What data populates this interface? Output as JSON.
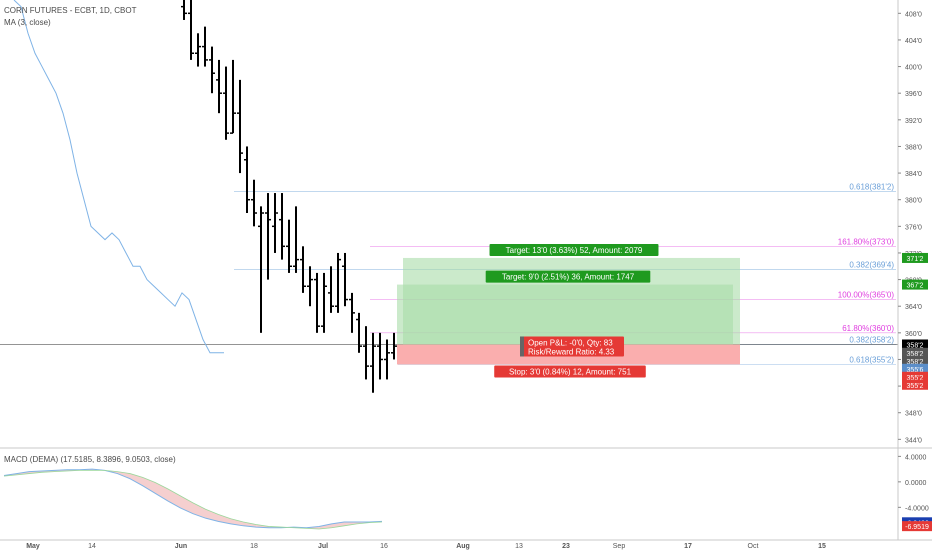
{
  "header": {
    "symbol": "CORN FUTURES - ECBT, 1D, CBOT",
    "ma_label": "MA (3, close)",
    "macd_label": "MACD (DEMA) (17.5185, 8.3896, 9.0503, close)"
  },
  "colors": {
    "bar": "#000000",
    "ma_line": "#7fb3e6",
    "fib_blue": "#6a9fd8",
    "fib_pink": "#e040e0",
    "target_bg": "#a8dca8",
    "target_label": "#1f9a1f",
    "stop_bg": "#f9a5a5",
    "stop_label": "#e53935",
    "last_price_bg": "#000000",
    "macd_line": "#7fb3e6",
    "macd_fill": "#f3c3c3"
  },
  "chart_data": {
    "type": "ohlc",
    "timeframe": "1D",
    "price_axis": {
      "ticks": [
        "408'0",
        "404'0",
        "400'0",
        "396'0",
        "392'0",
        "388'0",
        "384'0",
        "380'0",
        "376'0",
        "372'0",
        "368'0",
        "364'0",
        "360'0",
        "356'0",
        "352'0",
        "348'0",
        "344'0"
      ],
      "tick_values": [
        408,
        404,
        400,
        396,
        392,
        388,
        384,
        380,
        376,
        372,
        368,
        364,
        360,
        356,
        352,
        348,
        344
      ],
      "ylim": [
        343,
        410
      ]
    },
    "time_axis": {
      "labels": [
        "May",
        "14",
        "Jun",
        "18",
        "Jul",
        "16",
        "Aug",
        "13",
        "23",
        "Sep",
        "17",
        "Oct",
        "15"
      ]
    },
    "bars": [
      {
        "o": 409,
        "h": 410,
        "l": 407,
        "c": 408
      },
      {
        "o": 408,
        "h": 410,
        "l": 401,
        "c": 402
      },
      {
        "o": 402,
        "h": 405,
        "l": 400,
        "c": 403
      },
      {
        "o": 403,
        "h": 406,
        "l": 400,
        "c": 401
      },
      {
        "o": 401,
        "h": 403,
        "l": 396,
        "c": 399
      },
      {
        "o": 398,
        "h": 401,
        "l": 393,
        "c": 396
      },
      {
        "o": 396,
        "h": 400,
        "l": 389,
        "c": 390
      },
      {
        "o": 390,
        "h": 401,
        "l": 390,
        "c": 393
      },
      {
        "o": 393,
        "h": 398,
        "l": 384,
        "c": 387
      },
      {
        "o": 386,
        "h": 388,
        "l": 378,
        "c": 380
      },
      {
        "o": 380,
        "h": 383,
        "l": 376,
        "c": 378
      },
      {
        "o": 376,
        "h": 379,
        "l": 360,
        "c": 378
      },
      {
        "o": 378,
        "h": 381,
        "l": 368,
        "c": 377
      },
      {
        "o": 376,
        "h": 381,
        "l": 372,
        "c": 378
      },
      {
        "o": 377,
        "h": 381,
        "l": 371,
        "c": 373
      },
      {
        "o": 373,
        "h": 377,
        "l": 369,
        "c": 370
      },
      {
        "o": 370,
        "h": 379,
        "l": 369,
        "c": 371
      },
      {
        "o": 371,
        "h": 373,
        "l": 366,
        "c": 367
      },
      {
        "o": 367,
        "h": 370,
        "l": 364,
        "c": 368
      },
      {
        "o": 368,
        "h": 369,
        "l": 360,
        "c": 361
      },
      {
        "o": 361,
        "h": 369,
        "l": 360,
        "c": 367
      },
      {
        "o": 366,
        "h": 370,
        "l": 363,
        "c": 364
      },
      {
        "o": 364,
        "h": 372,
        "l": 363,
        "c": 371
      },
      {
        "o": 370,
        "h": 372,
        "l": 364,
        "c": 365
      },
      {
        "o": 365,
        "h": 366,
        "l": 360,
        "c": 363
      },
      {
        "o": 362,
        "h": 363,
        "l": 357,
        "c": 358
      },
      {
        "o": 358,
        "h": 361,
        "l": 353,
        "c": 355
      },
      {
        "o": 355,
        "h": 360,
        "l": 351,
        "c": 358
      },
      {
        "o": 358,
        "h": 360,
        "l": 353,
        "c": 356
      },
      {
        "o": 356,
        "h": 359,
        "l": 353,
        "c": 357
      },
      {
        "o": 357,
        "h": 360,
        "l": 356,
        "c": 358
      }
    ],
    "ma": {
      "name": "MA (3, close)",
      "values": [
        410,
        409,
        405,
        402,
        400,
        398,
        396,
        393,
        389,
        384,
        380,
        376,
        375,
        374,
        375,
        374,
        372,
        370,
        370,
        368,
        367,
        366,
        365,
        364,
        366,
        365,
        362,
        359,
        357,
        357,
        357
      ]
    },
    "fib_levels": [
      {
        "label": "0.618(381'2)",
        "value": 381.25,
        "color": "blue",
        "start_bar": 11
      },
      {
        "label": "0.382(369'4)",
        "value": 369.5,
        "color": "blue",
        "start_bar": 11
      },
      {
        "label": "0.382(358'2)",
        "value": 358.25,
        "color": "blue",
        "start_bar": 31
      },
      {
        "label": "0.618(355'2)",
        "value": 355.25,
        "color": "blue",
        "start_bar": 31
      },
      {
        "label": "161.80%(373'0)",
        "value": 373.0,
        "color": "pink",
        "start_bar": 27
      },
      {
        "label": "100.00%(365'0)",
        "value": 365.0,
        "color": "pink",
        "start_bar": 27
      },
      {
        "label": "61.80%(360'0)",
        "value": 360.0,
        "color": "pink",
        "start_bar": 27
      }
    ],
    "positions": [
      {
        "entry": 358.25,
        "target": 371.25,
        "stop": 355.25,
        "target_label": "Target: 13'0 (3.63%) 52, Amount: 2079",
        "stop_label": "Stop: 3'0 (0.84%) 12, Amount: 751"
      },
      {
        "entry": 358.25,
        "target": 367.25,
        "stop": 355.25,
        "target_label": "Target: 9'0 (2.51%) 36, Amount: 1747",
        "stop_label": ""
      }
    ],
    "pnl_box": {
      "line1": "Open P&L: -0'0, Qty: 83",
      "line2": "Risk/Reward Ratio: 4.33"
    },
    "axis_markers": [
      {
        "text": "371'2",
        "value": 371.25,
        "color": "#1f9a1f"
      },
      {
        "text": "367'2",
        "value": 367.25,
        "color": "#1f9a1f"
      },
      {
        "text": "358'2",
        "value": 358.25,
        "color": "#000000"
      },
      {
        "text": "358'2",
        "value": 357.0,
        "color": "#555555"
      },
      {
        "text": "358'2",
        "value": 355.8,
        "color": "#555555"
      },
      {
        "text": "355'6",
        "value": 354.6,
        "color": "#5b8ec9"
      },
      {
        "text": "355'2",
        "value": 353.4,
        "color": "#e53935"
      },
      {
        "text": "355'2",
        "value": 352.2,
        "color": "#e53935"
      }
    ],
    "last_price": 358.25,
    "macd": {
      "label": "MACD (DEMA) (17.5185, 8.3896, 9.0503, close)",
      "ticks": [
        "4.0000",
        "0.0000",
        "-4.0000"
      ],
      "tick_values": [
        4,
        0,
        -4
      ],
      "ylim": [
        -8.5,
        5
      ],
      "markers": [
        {
          "text": "-6.3490",
          "value": -6.349,
          "color": "#1a3fb0"
        },
        {
          "text": "-6.9519",
          "value": -6.9519,
          "color": "#e53935"
        }
      ],
      "macd_values": [
        1.0,
        1.3,
        1.6,
        1.7,
        1.8,
        1.9,
        1.9,
        2.0,
        1.8,
        1.3,
        0.5,
        -0.6,
        -1.8,
        -3.0,
        -4.1,
        -5.0,
        -5.7,
        -6.2,
        -6.6,
        -6.9,
        -7.1,
        -7.2,
        -7.2,
        -7.1,
        -7.2,
        -7.0,
        -6.6,
        -6.3,
        -6.3,
        -6.3,
        -6.2
      ],
      "signal_values": [
        0.9,
        1.1,
        1.3,
        1.5,
        1.6,
        1.7,
        1.8,
        1.8,
        1.8,
        1.6,
        1.3,
        0.7,
        -0.1,
        -1.1,
        -2.2,
        -3.3,
        -4.3,
        -5.1,
        -5.8,
        -6.3,
        -6.7,
        -7.0,
        -7.1,
        -7.2,
        -7.3,
        -7.4,
        -7.2,
        -6.9,
        -6.6,
        -6.4,
        -6.3
      ]
    }
  }
}
